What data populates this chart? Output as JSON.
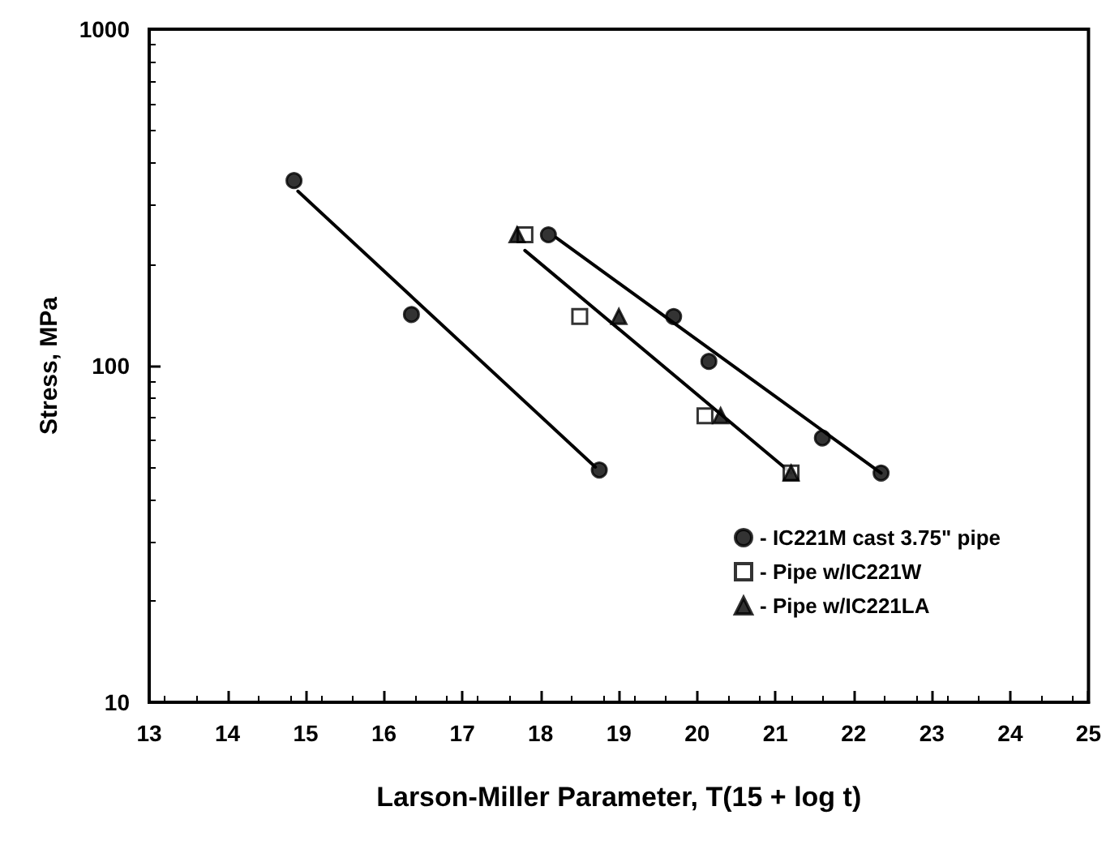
{
  "chart_data": {
    "type": "scatter",
    "xlabel": "Larson-Miller Parameter, T(15 + log t)",
    "ylabel": "Stress, MPa",
    "log": "y",
    "xlim": [
      13,
      25
    ],
    "xticks": [
      13,
      14,
      15,
      16,
      17,
      18,
      19,
      20,
      21,
      22,
      23,
      24,
      25
    ],
    "ylim": [
      10,
      1000
    ],
    "yticks": [
      10,
      100,
      1000
    ],
    "grid": false,
    "legend": "right",
    "series": [
      {
        "color": "#000000",
        "marker": "circle",
        "x": [
          14.85,
          16.35,
          18.75
        ],
        "values": [
          355,
          142,
          49
        ]
      },
      {
        "name": "- IC221M cast 3.75\" pipe",
        "color": "#000000",
        "marker": "circle",
        "x": [
          18.1,
          19.7,
          20.15,
          21.6,
          22.35
        ],
        "values": [
          245,
          140,
          103,
          61,
          48
        ]
      },
      {
        "name": "- Pipe w/IC221W",
        "color": "#000000",
        "marker": "square",
        "x": [
          17.8,
          18.5,
          20.1,
          21.2
        ],
        "values": [
          245,
          140,
          71,
          48
        ]
      },
      {
        "name": "- Pipe w/IC221LA",
        "color": "#000000",
        "marker": "triangle",
        "x": [
          17.7,
          19.0,
          20.3,
          21.2
        ],
        "values": [
          245,
          140,
          71,
          48
        ]
      },
      {
        "type": "line",
        "color": "#000000",
        "marker": "none",
        "x": [
          14.9,
          18.7
        ],
        "values": [
          330,
          50
        ]
      },
      {
        "type": "line",
        "color": "#000000",
        "marker": "none",
        "x": [
          18.2,
          22.35
        ],
        "values": [
          240,
          48
        ]
      },
      {
        "type": "line",
        "color": "#000000",
        "marker": "none",
        "x": [
          17.8,
          21.2
        ],
        "values": [
          220,
          48
        ]
      }
    ]
  }
}
